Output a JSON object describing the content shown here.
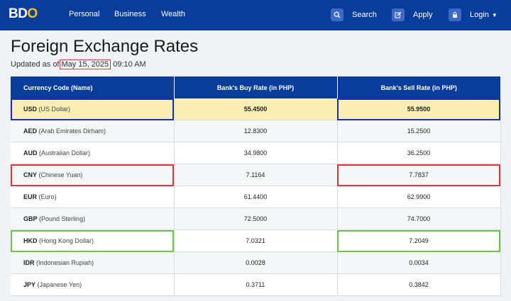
{
  "header": {
    "logo_text_main": "BD",
    "logo_text_o": "O",
    "nav": [
      "Personal",
      "Business",
      "Wealth"
    ],
    "search_label": "Search",
    "apply_label": "Apply",
    "login_label": "Login"
  },
  "page": {
    "title": "Foreign Exchange Rates",
    "updated_prefix": "Updated as of",
    "updated_date": "May 15, 2025",
    "updated_time": "09:10 AM"
  },
  "table": {
    "headers": [
      "Currency Code (Name)",
      "Bank's Buy Rate (in PHP)",
      "Bank's Sell Rate (in PHP)"
    ],
    "rows": [
      {
        "code": "USD",
        "name": "(US Dollar)",
        "buy": "55.4500",
        "sell": "55.9500"
      },
      {
        "code": "AED",
        "name": "(Arab Emirates Dirham)",
        "buy": "12.8300",
        "sell": "15.2500"
      },
      {
        "code": "AUD",
        "name": "(Australian Dollar)",
        "buy": "34.9800",
        "sell": "36.2500"
      },
      {
        "code": "CNY",
        "name": "(Chinese Yuan)",
        "buy": "7.1164",
        "sell": "7.7837"
      },
      {
        "code": "EUR",
        "name": "(Euro)",
        "buy": "61.4400",
        "sell": "62.9900"
      },
      {
        "code": "GBP",
        "name": "(Pound Sterling)",
        "buy": "72.5000",
        "sell": "74.7000"
      },
      {
        "code": "HKD",
        "name": "(Hong Kong Dollar)",
        "buy": "7.0321",
        "sell": "7.2049"
      },
      {
        "code": "IDR",
        "name": "(Indonesian Rupiah)",
        "buy": "0.0028",
        "sell": "0.0034"
      },
      {
        "code": "JPY",
        "name": "(Japanese Yen)",
        "buy": "0.3711",
        "sell": "0.3842"
      }
    ]
  },
  "colors": {
    "nav_bg": "#0a3d9a",
    "logo_accent": "#f6c21a",
    "highlight_yellow": "#fbeeb5",
    "outline_blue": "#1a2fa8",
    "outline_red": "#d63a3a",
    "outline_green": "#6cc54a"
  },
  "icons": {
    "search": "search-icon",
    "apply": "edit-icon",
    "login": "lock-icon"
  }
}
